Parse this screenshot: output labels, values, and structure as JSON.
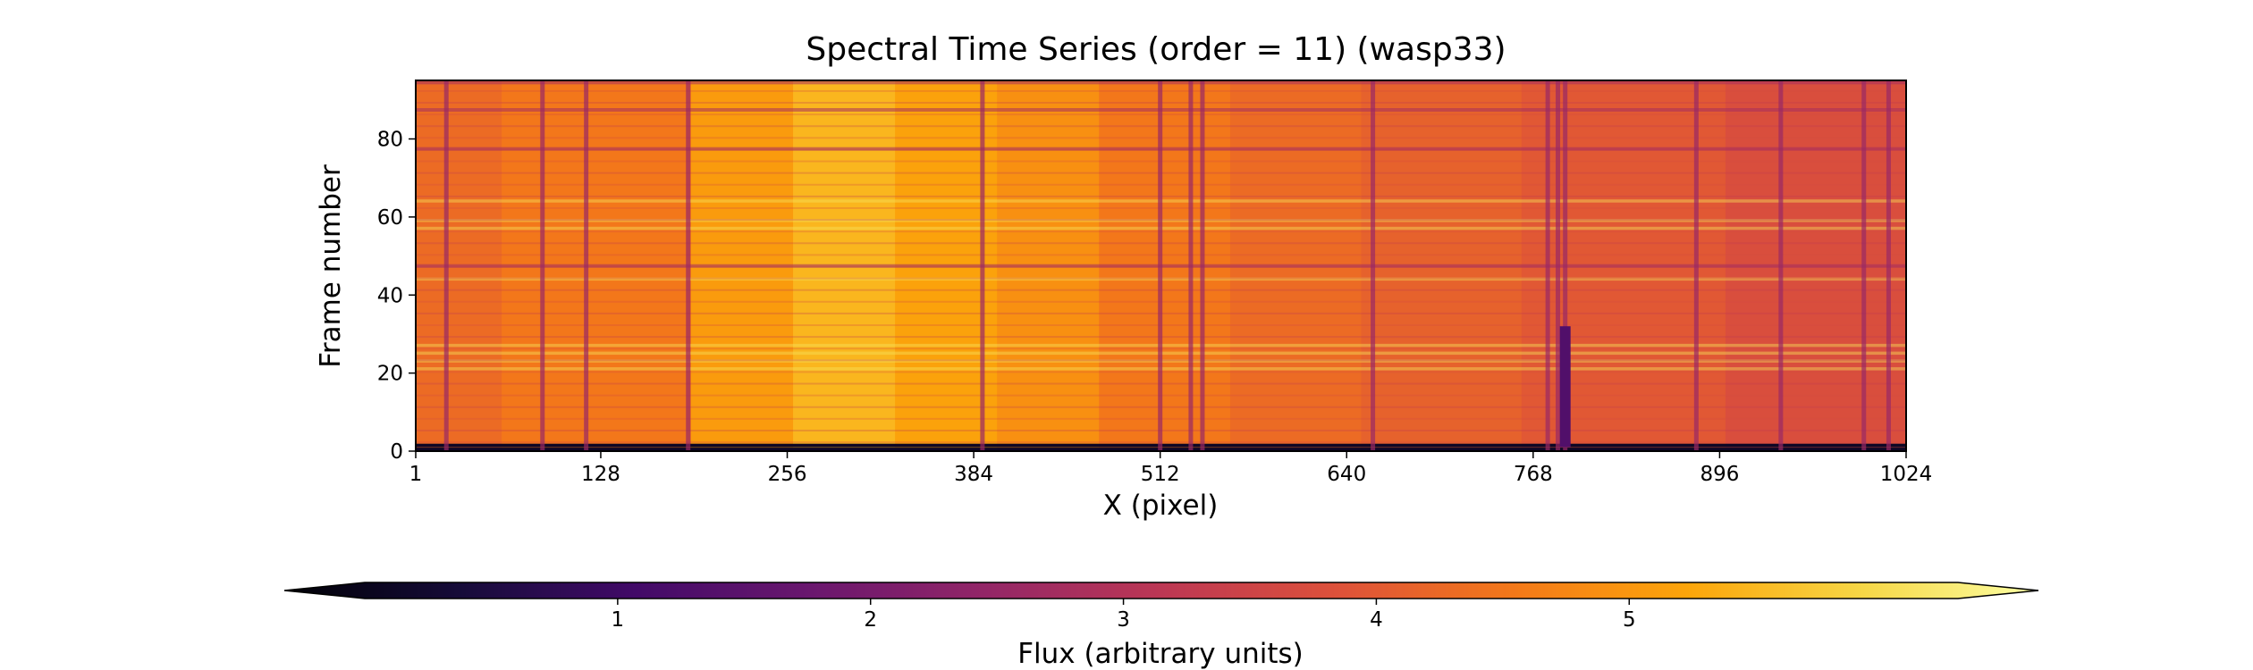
{
  "chart_data": {
    "type": "heatmap",
    "title": "Spectral Time Series (order = 11) (wasp33)",
    "xlabel": "X (pixel)",
    "ylabel": "Frame number",
    "xlim": [
      1,
      1024
    ],
    "ylim": [
      0,
      95
    ],
    "x_ticks": [
      1,
      128,
      256,
      384,
      512,
      640,
      768,
      896,
      1024
    ],
    "y_ticks": [
      0,
      20,
      40,
      60,
      80
    ],
    "colormap": "inferno",
    "colorbar": {
      "label": "Flux (arbitrary units)",
      "range": [
        0,
        6.3
      ],
      "ticks": [
        1,
        2,
        3,
        4,
        5
      ],
      "extend": "both",
      "orientation": "horizontal",
      "placement": "bottom"
    },
    "features": {
      "bright_rows": [
        21,
        23,
        25,
        27,
        44,
        57,
        59,
        64
      ],
      "dark_frame_rows": [
        0,
        1,
        47,
        77,
        87,
        94
      ],
      "absorption_columns": [
        22,
        88,
        118,
        188,
        390,
        512,
        533,
        541,
        658,
        778,
        785,
        790,
        880,
        938,
        995,
        1012
      ],
      "strong_absorption": {
        "x": 790,
        "frames": [
          1,
          32
        ]
      },
      "value_range_estimate": [
        0.2,
        6.2
      ]
    }
  }
}
